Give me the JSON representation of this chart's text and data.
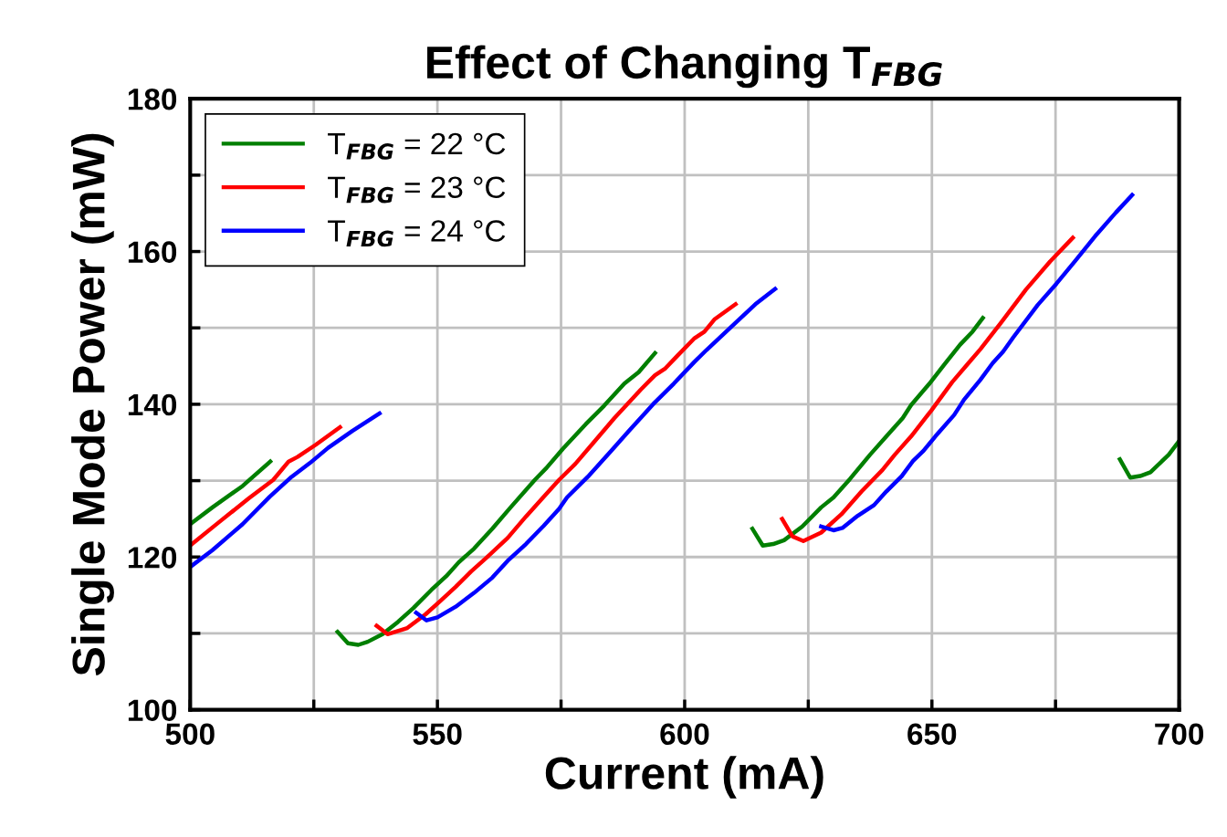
{
  "chart_data": {
    "type": "line",
    "title": "Effect of Changing T$_{FBG}$",
    "xlabel": "Current (mA)",
    "ylabel": "Single Mode Power (mW)",
    "xlim": [
      500,
      700
    ],
    "ylim": [
      100,
      180
    ],
    "xticks": [
      500,
      {
        "value": 525,
        "label": null
      },
      550,
      {
        "value": 575,
        "label": null
      },
      600,
      {
        "value": 625,
        "label": null
      },
      650,
      {
        "value": 675,
        "label": null
      },
      700
    ],
    "yticks": [
      100,
      {
        "value": 110,
        "label": null
      },
      120,
      {
        "value": 130,
        "label": null
      },
      140,
      {
        "value": 150,
        "label": null
      },
      160,
      {
        "value": 170,
        "label": null
      },
      180
    ],
    "grid": true,
    "legend": "top left",
    "marker": "none",
    "line_style": "solid",
    "series": [
      {
        "name": "T$_{FBG}$ = 22 °C",
        "color": "#007f00",
        "x": [
          500,
          504.5,
          510.6,
          516.2,
          null,
          529.8,
          531.9,
          534.0,
          535.9,
          538.9,
          542.0,
          545.1,
          548.8,
          551.8,
          554.3,
          557.4,
          561.1,
          564.8,
          569.7,
          572.1,
          575.4,
          580.0,
          583.7,
          587.8,
          590.7,
          594.0,
          null,
          613.7,
          615.8,
          617.9,
          620.1,
          623.8,
          627.6,
          630.1,
          633.4,
          637.5,
          640.8,
          644.1,
          645.8,
          649.5,
          652.4,
          655.7,
          658.2,
          660.3,
          null,
          688.0,
          690.1,
          692.1,
          694.2,
          697.9,
          700
        ],
        "values": [
          124.3,
          126.5,
          129.3,
          132.5,
          null,
          110.2,
          108.7,
          108.5,
          108.9,
          109.9,
          111.5,
          113.3,
          115.7,
          117.5,
          119.3,
          121.1,
          123.7,
          126.5,
          130.1,
          131.7,
          134.2,
          137.4,
          139.8,
          142.7,
          144.2,
          146.7,
          null,
          123.7,
          121.5,
          121.7,
          122.2,
          124.0,
          126.5,
          127.8,
          130.2,
          133.4,
          135.8,
          138.2,
          139.9,
          142.7,
          145.1,
          147.8,
          149.5,
          151.3,
          null,
          132.8,
          130.4,
          130.6,
          131.1,
          133.4,
          135.2
        ]
      },
      {
        "name": "T$_{FBG}$ = 23 °C",
        "color": "#ff0000",
        "x": [
          500,
          505.7,
          511.9,
          516.8,
          519.9,
          521.7,
          525.4,
          530.3,
          null,
          537.7,
          539.9,
          543.9,
          547.6,
          550.7,
          553.7,
          556.8,
          559.9,
          564.2,
          567.9,
          571.5,
          574.6,
          577.9,
          581.2,
          585.8,
          591.1,
          594.0,
          596.1,
          598.6,
          601.9,
          604.0,
          606.0,
          610.3,
          null,
          619.7,
          621.8,
          624.0,
          627.6,
          631.7,
          635.8,
          640.0,
          642.5,
          645.8,
          649.9,
          654.1,
          657.4,
          659.8,
          664.0,
          669.0,
          673.9,
          678.5
        ],
        "values": [
          121.5,
          124.5,
          127.7,
          130.1,
          132.5,
          133.1,
          134.7,
          137.0,
          null,
          111.0,
          109.9,
          110.7,
          112.5,
          114.3,
          116.1,
          118.1,
          119.9,
          122.5,
          125.3,
          127.9,
          130.1,
          132.2,
          134.7,
          138.2,
          141.9,
          143.8,
          144.7,
          146.4,
          148.6,
          149.5,
          151.1,
          153.1,
          null,
          125.0,
          122.7,
          122.1,
          123.2,
          125.6,
          128.6,
          131.4,
          133.4,
          135.8,
          139.2,
          142.9,
          145.4,
          147.2,
          150.7,
          155.0,
          158.7,
          161.8
        ]
      },
      {
        "name": "T$_{FBG}$ = 24 °C",
        "color": "#0000ff",
        "x": [
          500,
          504.5,
          510.6,
          516.1,
          520.5,
          524.2,
          527.9,
          532.8,
          538.3,
          null,
          545.7,
          547.8,
          550.0,
          553.7,
          557.4,
          561.1,
          564.2,
          567.9,
          571.5,
          574.6,
          576.2,
          580.4,
          585.3,
          588.7,
          593.6,
          597.8,
          601.9,
          604.4,
          610.2,
          614.3,
          618.3,
          null,
          627.6,
          630.1,
          631.9,
          635.0,
          638.3,
          640.8,
          643.9,
          646.2,
          648.3,
          650.7,
          654.5,
          656.5,
          659.8,
          662.3,
          664.4,
          666.5,
          671.4,
          675.2,
          678.9,
          683.0,
          687.2,
          690.5
        ],
        "values": [
          118.7,
          120.9,
          124.3,
          127.9,
          130.5,
          132.3,
          134.3,
          136.5,
          138.8,
          null,
          112.7,
          111.7,
          112.1,
          113.5,
          115.3,
          117.3,
          119.5,
          121.7,
          124.1,
          126.3,
          127.8,
          130.5,
          134.0,
          136.5,
          140.0,
          142.7,
          145.5,
          147.1,
          150.6,
          153.1,
          155.1,
          null,
          124.0,
          123.5,
          123.8,
          125.4,
          126.8,
          128.6,
          130.6,
          132.6,
          133.9,
          135.8,
          138.6,
          140.6,
          143.2,
          145.4,
          146.9,
          148.8,
          153.0,
          155.8,
          158.7,
          162.0,
          165.1,
          167.4
        ]
      }
    ]
  }
}
